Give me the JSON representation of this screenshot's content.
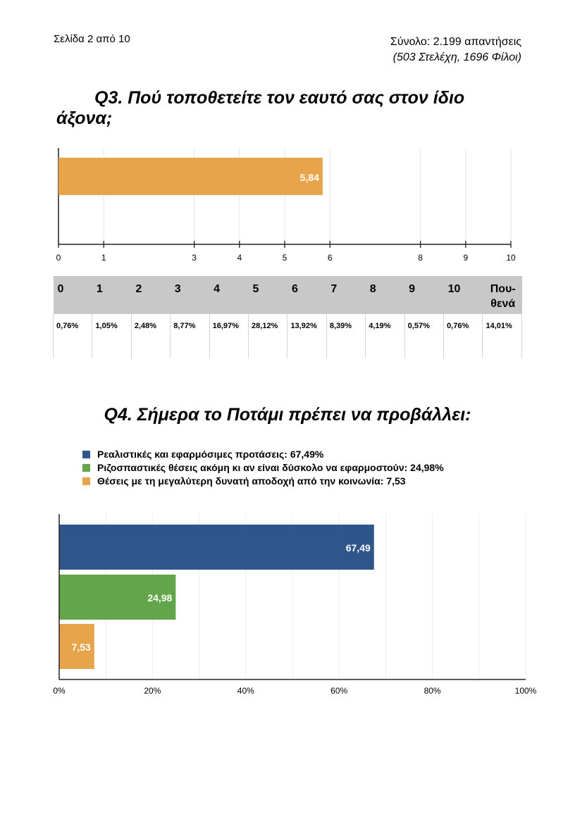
{
  "header": {
    "page_label": "Σελίδα 2 από 10",
    "total": "Σύνολο: 2.199 απαντήσεις",
    "breakdown": "(503 Στελέχη, 1696 Φίλοι)"
  },
  "q3": {
    "title": "Q3. Πού τοποθετείτε τον εαυτό σας στον ίδιο άξονα;"
  },
  "q4": {
    "title": "Q4. Σήμερα το Ποτάμι πρέπει να προβάλλει:"
  },
  "table": {
    "headers": [
      "0",
      "1",
      "2",
      "3",
      "4",
      "5",
      "6",
      "7",
      "8",
      "9",
      "10",
      "Που-θενά"
    ],
    "values": [
      "0,76%",
      "1,05%",
      "2,48%",
      "8,77%",
      "16,97%",
      "28,12%",
      "13,92%",
      "8,39%",
      "4,19%",
      "0,57%",
      "0,76%",
      "14,01%"
    ]
  },
  "chart_data": [
    {
      "type": "bar",
      "orientation": "horizontal",
      "categories": [
        ""
      ],
      "values": [
        5.84
      ],
      "value_labels": [
        "5,84"
      ],
      "xlim": [
        0,
        10
      ],
      "x_ticks": [
        0,
        1,
        3,
        4,
        5,
        6,
        8,
        9,
        10
      ],
      "x_tick_labels": [
        "0",
        "1",
        "3",
        "4",
        "5",
        "6",
        "8",
        "9",
        "10"
      ],
      "bar_color": "#E8A44A",
      "grid": true
    },
    {
      "type": "bar",
      "orientation": "horizontal",
      "categories": [
        "Ρεαλιστικές και εφαρμόσιμες προτάσεις: 67,49%",
        "Ριζοσπαστικές θέσεις ακόμη κι αν είναι δύσκολο να εφαρμοστούν: 24,98%",
        "Θέσεις με τη μεγαλύτερη δυνατή αποδοχή από την κοινωνία: 7,53"
      ],
      "values": [
        67.49,
        24.98,
        7.53
      ],
      "value_labels": [
        "67,49",
        "24,98",
        "7,53"
      ],
      "colors": [
        "#2F568A",
        "#63A54A",
        "#E8A44A"
      ],
      "xlim": [
        0,
        100
      ],
      "x_ticks": [
        0,
        20,
        40,
        60,
        80,
        100
      ],
      "x_tick_labels": [
        "0%",
        "20%",
        "40%",
        "60%",
        "80%",
        "100%"
      ],
      "legend": "top-left",
      "grid": true
    }
  ]
}
